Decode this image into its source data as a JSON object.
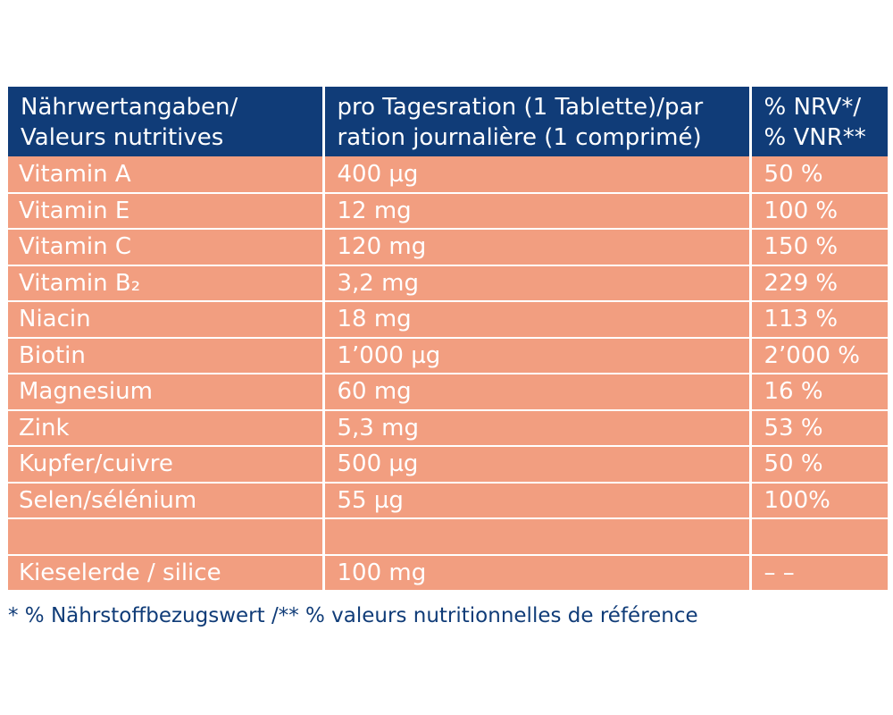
{
  "table": {
    "headers": [
      [
        "Nährwertangaben/",
        "Valeurs nutritives"
      ],
      [
        "pro Tagesration (1 Tablette)/par",
        "ration journalière (1 comprimé)"
      ],
      [
        "% NRV*/",
        "% VNR**"
      ]
    ],
    "rows": [
      [
        "Vitamin A",
        "400 µg",
        "50 %"
      ],
      [
        "Vitamin E",
        "12 mg",
        "100 %"
      ],
      [
        "Vitamin C",
        "120 mg",
        "150 %"
      ],
      [
        "Vitamin B₂",
        "3,2 mg",
        "229 %"
      ],
      [
        "Niacin",
        "18 mg",
        "113 %"
      ],
      [
        "Biotin",
        "1’000  µg",
        "2’000 %"
      ],
      [
        "Magnesium",
        "60 mg",
        "16 %"
      ],
      [
        "Zink",
        "5,3 mg",
        "53 %"
      ],
      [
        "Kupfer/cuivre",
        "500 µg",
        "50 %"
      ],
      [
        "Selen/sélénium",
        "55 µg",
        "100%"
      ],
      [
        "",
        "",
        ""
      ],
      [
        "Kieselerde / silice",
        "100 mg",
        "– –"
      ]
    ]
  },
  "footnote": "* % Nährstoffbezugswert /** % valeurs nutritionnelles de référence",
  "colors": {
    "header_bg": "#103c78",
    "row_bg": "#f29e80",
    "footnote_text": "#103c78"
  }
}
